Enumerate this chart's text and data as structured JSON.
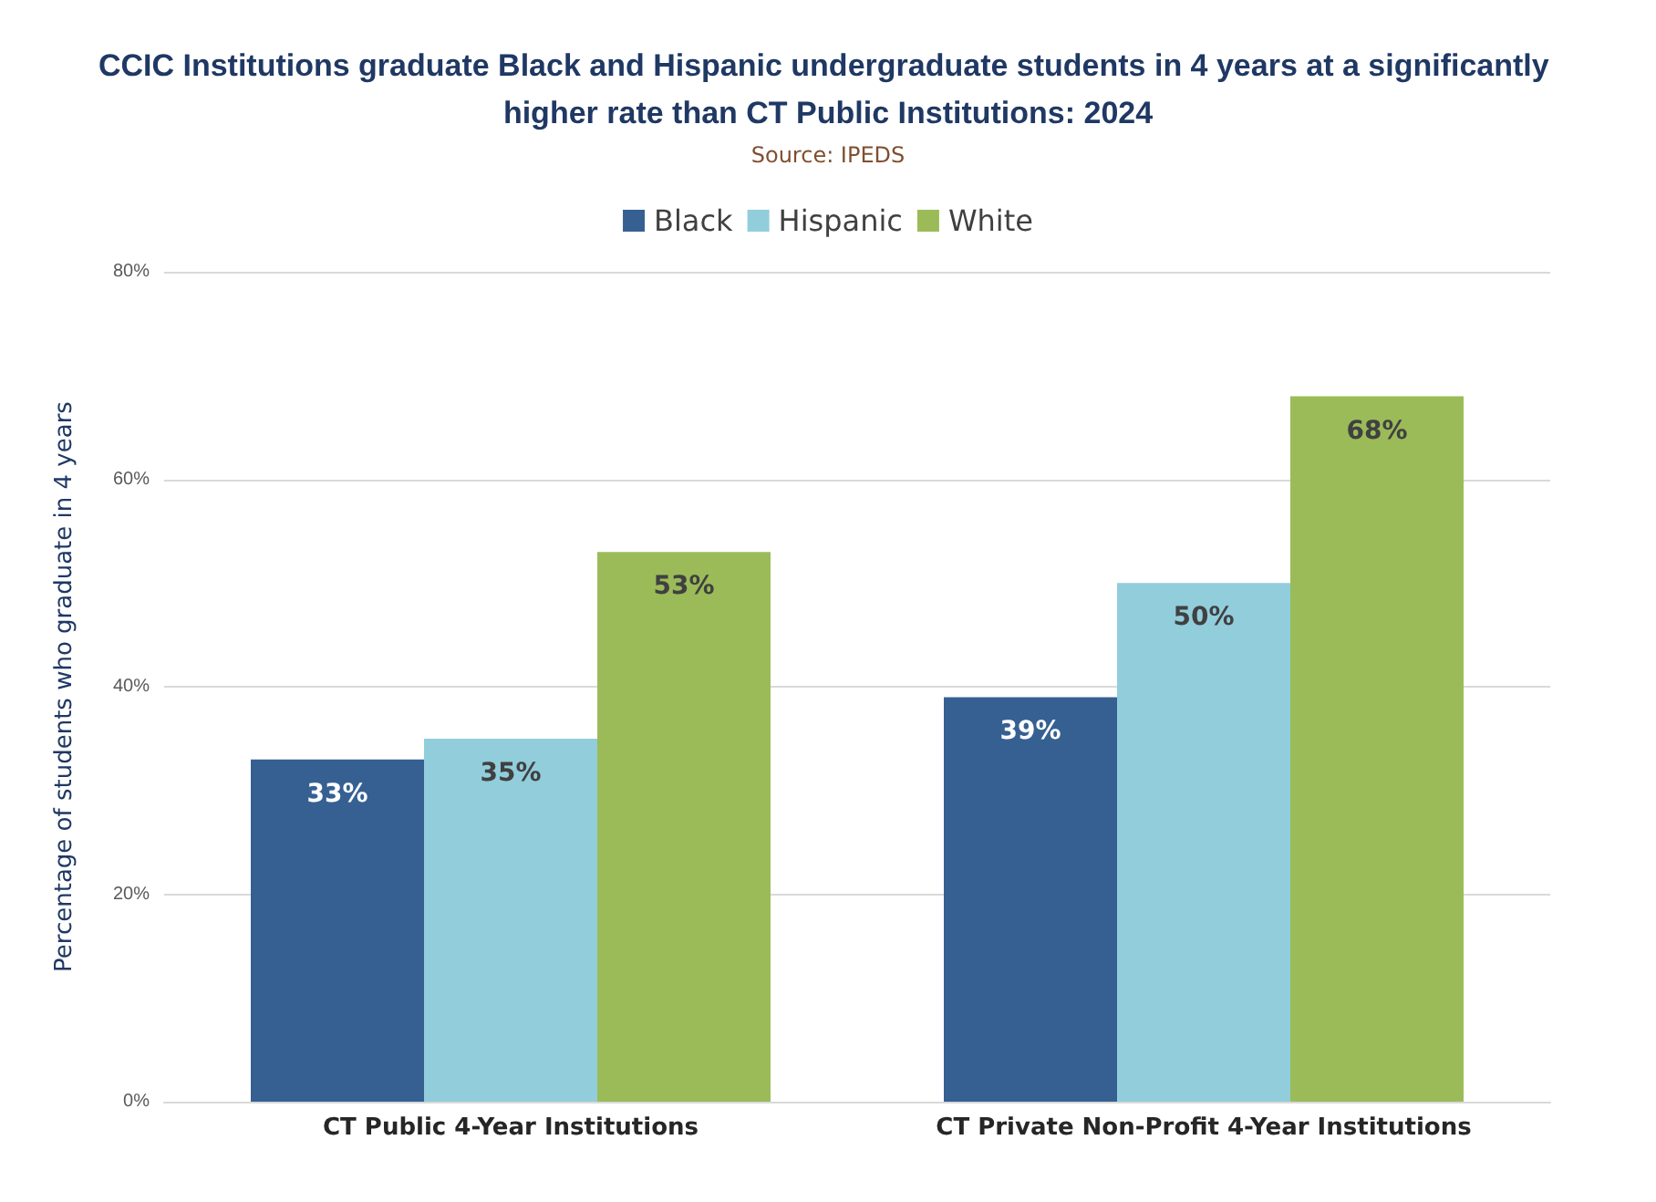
{
  "chart_data": {
    "type": "bar",
    "title": "CCIC Institutions graduate Black and Hispanic undergraduate students in 4 years at a significantly higher rate than CT Public Institutions: 2024",
    "annotations": [
      "Source: IPEDS"
    ],
    "ylabel": "Percentage of students who graduate in 4 years",
    "categories": [
      "CT Public 4-Year Institutions",
      "CT Private Non-Profit 4-Year Institutions"
    ],
    "series": [
      {
        "name": "Black",
        "color": "#366092",
        "values": [
          33,
          39
        ],
        "value_labels": [
          "33%",
          "39%"
        ]
      },
      {
        "name": "Hispanic",
        "color": "#92cddc",
        "values": [
          35,
          50
        ],
        "value_labels": [
          "35%",
          "50%"
        ]
      },
      {
        "name": "White",
        "color": "#9bbb59",
        "values": [
          53,
          68
        ],
        "value_labels": [
          "53%",
          "68%"
        ]
      }
    ],
    "ylim": [
      0,
      80
    ],
    "yticks": [
      {
        "value": 0,
        "label": "0%"
      },
      {
        "value": 20,
        "label": "20%"
      },
      {
        "value": 40,
        "label": "40%"
      },
      {
        "value": 60,
        "label": "60%"
      },
      {
        "value": 80,
        "label": "80%"
      }
    ],
    "grid": "y",
    "legend": "top"
  }
}
